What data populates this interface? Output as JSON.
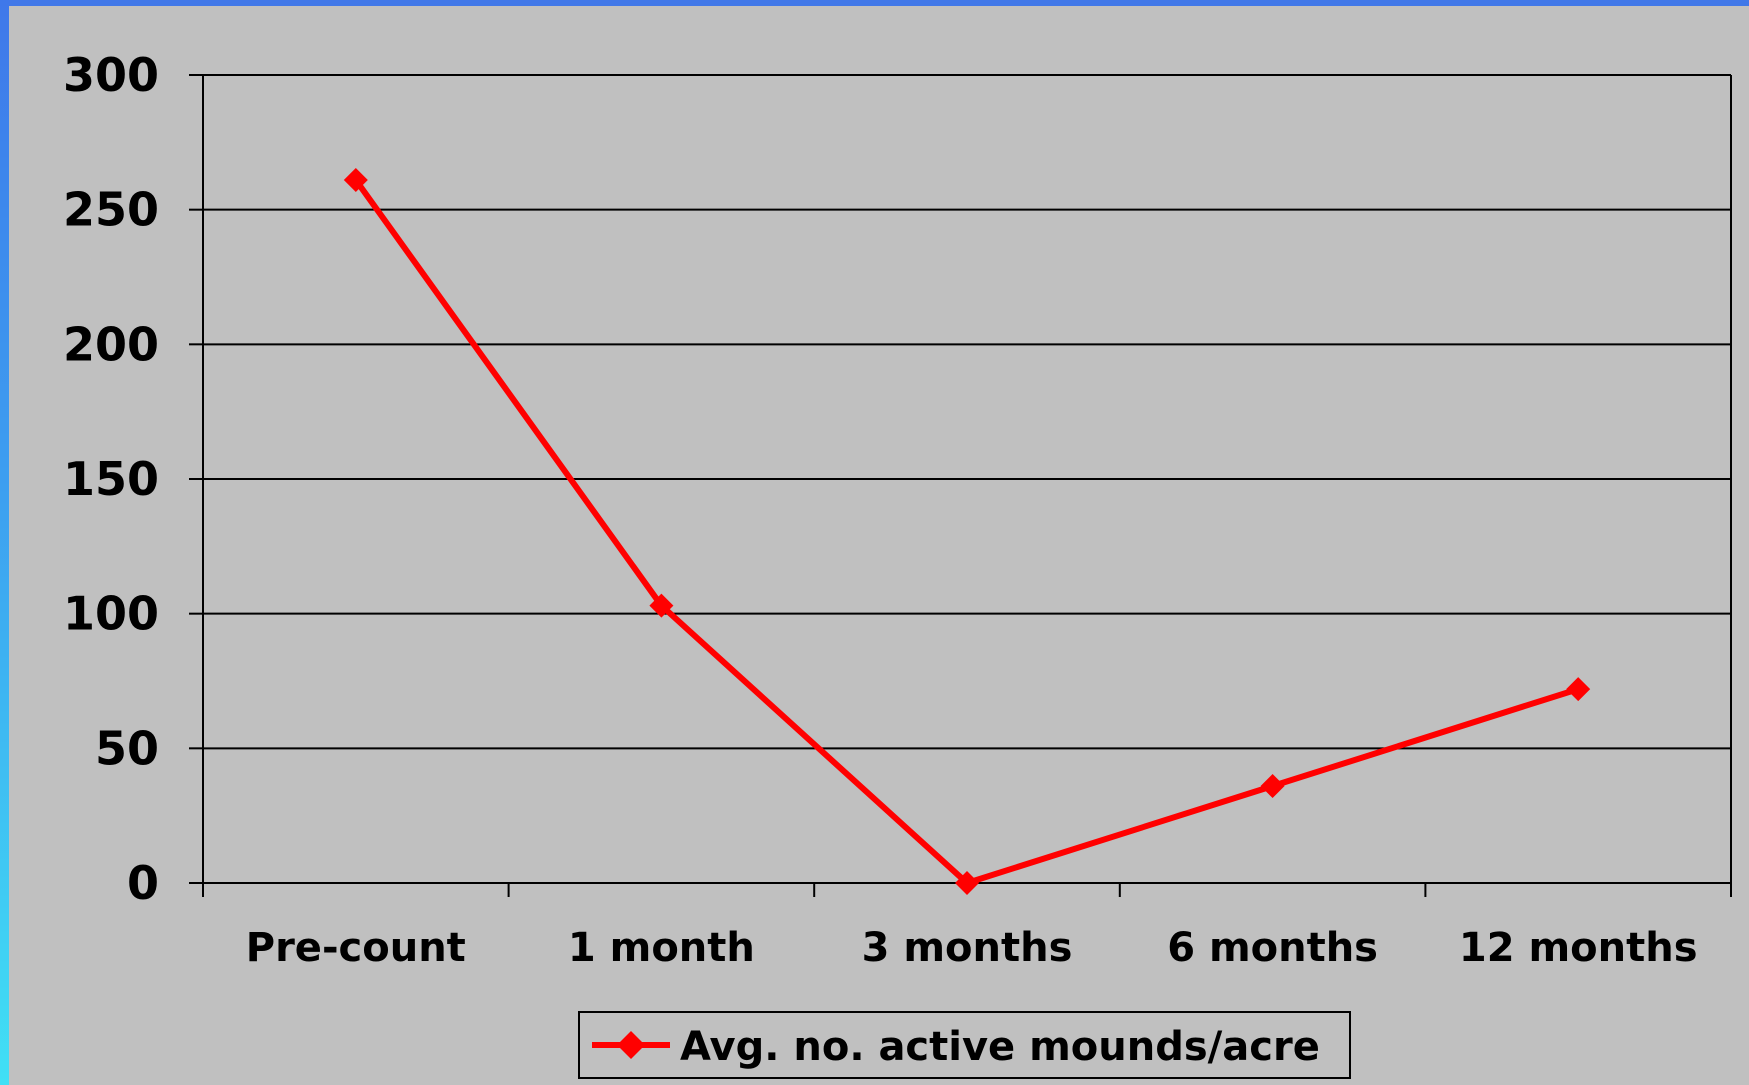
{
  "chart_data": {
    "type": "line",
    "categories": [
      "Pre-count",
      "1 month",
      "3 months",
      "6 months",
      "12 months"
    ],
    "series": [
      {
        "name": "Avg. no. active mounds/acre",
        "values": [
          261,
          103,
          0,
          36,
          72
        ],
        "color": "#ff0000",
        "marker": "diamond"
      }
    ],
    "y_ticks": [
      0,
      50,
      100,
      150,
      200,
      250,
      300
    ],
    "ylim": [
      0,
      300
    ],
    "grid": true,
    "legend_position": "bottom"
  },
  "colors": {
    "background": "#c0c0c0",
    "series": "#ff0000",
    "frame_edge": "#4178e8"
  }
}
